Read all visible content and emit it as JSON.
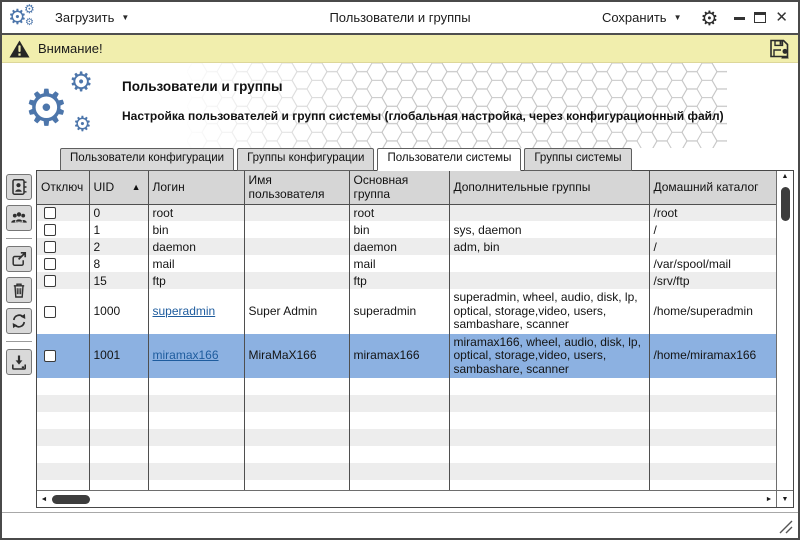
{
  "titlebar": {
    "load_label": "Загрузить",
    "title": "Пользователи и группы",
    "save_label": "Сохранить"
  },
  "warning": {
    "text": "Внимание!"
  },
  "header": {
    "title": "Пользователи и группы",
    "subtitle": "Настройка пользователей и групп системы (глобальная настройка, через конфигурационный файл)"
  },
  "tabs": [
    {
      "label": "Пользователи конфигурации",
      "active": false
    },
    {
      "label": "Группы конфигурации",
      "active": false
    },
    {
      "label": "Пользователи системы",
      "active": true
    },
    {
      "label": "Группы системы",
      "active": false
    }
  ],
  "toolbar": {
    "icons": [
      "add-user-icon",
      "add-group-icon",
      "export-icon",
      "delete-icon",
      "refresh-icon",
      "import-icon"
    ]
  },
  "table": {
    "columns": [
      "Отключ",
      "UID",
      "Логин",
      "Имя пользователя",
      "Основная группа",
      "Дополнительные группы",
      "Домашний каталог"
    ],
    "sort": {
      "column": "UID",
      "direction": "asc"
    },
    "rows": [
      {
        "uid": "0",
        "login": "root",
        "link": false,
        "name": "",
        "group": "root",
        "extra_groups": "",
        "home": "/root",
        "selected": false
      },
      {
        "uid": "1",
        "login": "bin",
        "link": false,
        "name": "",
        "group": "bin",
        "extra_groups": "sys, daemon",
        "home": "/",
        "selected": false
      },
      {
        "uid": "2",
        "login": "daemon",
        "link": false,
        "name": "",
        "group": "daemon",
        "extra_groups": "adm, bin",
        "home": "/",
        "selected": false
      },
      {
        "uid": "8",
        "login": "mail",
        "link": false,
        "name": "",
        "group": "mail",
        "extra_groups": "",
        "home": "/var/spool/mail",
        "selected": false
      },
      {
        "uid": "15",
        "login": "ftp",
        "link": false,
        "name": "",
        "group": "ftp",
        "extra_groups": "",
        "home": "/srv/ftp",
        "selected": false
      },
      {
        "uid": "1000",
        "login": "superadmin",
        "link": true,
        "name": "Super Admin",
        "group": "superadmin",
        "extra_groups": "superadmin, wheel, audio, disk, lp, optical, storage,video, users, sambashare, scanner",
        "home": "/home/superadmin",
        "selected": false
      },
      {
        "uid": "1001",
        "login": "miramax166",
        "link": true,
        "name": "MiraMaX166",
        "group": "miramax166",
        "extra_groups": "miramax166, wheel, audio, disk, lp, optical, storage,video, users, sambashare, scanner",
        "home": "/home/miramax166",
        "selected": true
      }
    ]
  },
  "glyphs": {
    "caret_down": "▼",
    "sort_asc": "▲",
    "scroll_up": "▲",
    "scroll_down": "▼",
    "scroll_left": "◄",
    "scroll_right": "►",
    "close": "✕"
  },
  "colors": {
    "gear_blue": "#4d76ab",
    "warning_bg": "#f1eead",
    "selected_row": "#8cb1e1",
    "link": "#1e5c9e",
    "stripe": "#ededed",
    "header_bg": "#d6d6d6",
    "thumb": "#3d3d3d"
  }
}
